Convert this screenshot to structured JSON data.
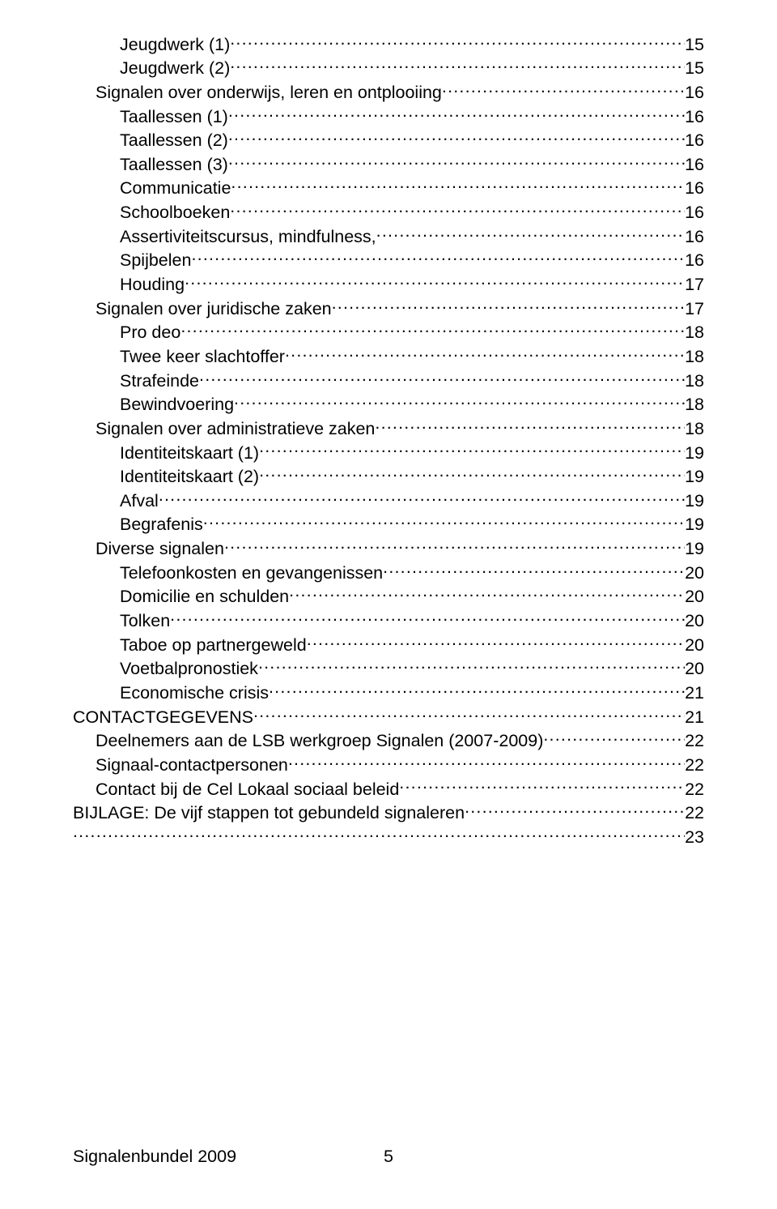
{
  "toc": [
    {
      "label": "Jeugdwerk (1)",
      "page": "15",
      "indent": 2
    },
    {
      "label": "Jeugdwerk (2)",
      "page": "15",
      "indent": 2
    },
    {
      "label": "Signalen over onderwijs, leren en ontplooiing",
      "page": "16",
      "indent": 1
    },
    {
      "label": "Taallessen (1)",
      "page": "16",
      "indent": 2
    },
    {
      "label": "Taallessen (2)",
      "page": "16",
      "indent": 2
    },
    {
      "label": "Taallessen (3)",
      "page": "16",
      "indent": 2
    },
    {
      "label": "Communicatie",
      "page": "16",
      "indent": 2
    },
    {
      "label": "Schoolboeken",
      "page": "16",
      "indent": 2
    },
    {
      "label": "Assertiviteitscursus, mindfulness,",
      "page": "16",
      "indent": 2
    },
    {
      "label": "Spijbelen",
      "page": "16",
      "indent": 2
    },
    {
      "label": "Houding",
      "page": "17",
      "indent": 2
    },
    {
      "label": "Signalen over juridische zaken",
      "page": "17",
      "indent": 1
    },
    {
      "label": "Pro deo",
      "page": "18",
      "indent": 2
    },
    {
      "label": "Twee keer slachtoffer",
      "page": "18",
      "indent": 2
    },
    {
      "label": "Strafeinde",
      "page": "18",
      "indent": 2
    },
    {
      "label": "Bewindvoering",
      "page": "18",
      "indent": 2
    },
    {
      "label": "Signalen over administratieve zaken",
      "page": "18",
      "indent": 1
    },
    {
      "label": "Identiteitskaart (1)",
      "page": "19",
      "indent": 2
    },
    {
      "label": "Identiteitskaart (2)",
      "page": "19",
      "indent": 2
    },
    {
      "label": "Afval",
      "page": "19",
      "indent": 2
    },
    {
      "label": "Begrafenis",
      "page": "19",
      "indent": 2
    },
    {
      "label": "Diverse signalen",
      "page": "19",
      "indent": 1
    },
    {
      "label": "Telefoonkosten en gevangenissen",
      "page": "20",
      "indent": 2
    },
    {
      "label": "Domicilie en schulden",
      "page": "20",
      "indent": 2
    },
    {
      "label": "Tolken",
      "page": "20",
      "indent": 2
    },
    {
      "label": "Taboe op partnergeweld",
      "page": "20",
      "indent": 2
    },
    {
      "label": "Voetbalpronostiek",
      "page": "20",
      "indent": 2
    },
    {
      "label": "Economische crisis",
      "page": "21",
      "indent": 2
    },
    {
      "label": "CONTACTGEGEVENS",
      "page": "21",
      "indent": 0
    },
    {
      "label": "Deelnemers aan de LSB werkgroep Signalen (2007-2009)",
      "page": "22",
      "indent": 1
    },
    {
      "label": "Signaal-contactpersonen",
      "page": "22",
      "indent": 1
    },
    {
      "label": "Contact bij de Cel Lokaal sociaal beleid",
      "page": "22",
      "indent": 1
    },
    {
      "label": "BIJLAGE: De vijf stappen tot gebundeld signaleren",
      "page": "22",
      "indent": 0
    },
    {
      "label": "",
      "page": "23",
      "indent": 0,
      "blank_label": true
    }
  ],
  "footer": {
    "title": "Signalenbundel 2009",
    "page": "5"
  },
  "style": {
    "text_color": "#000000",
    "background_color": "#ffffff",
    "font_size_pt": 16,
    "font_family": "Arial"
  }
}
